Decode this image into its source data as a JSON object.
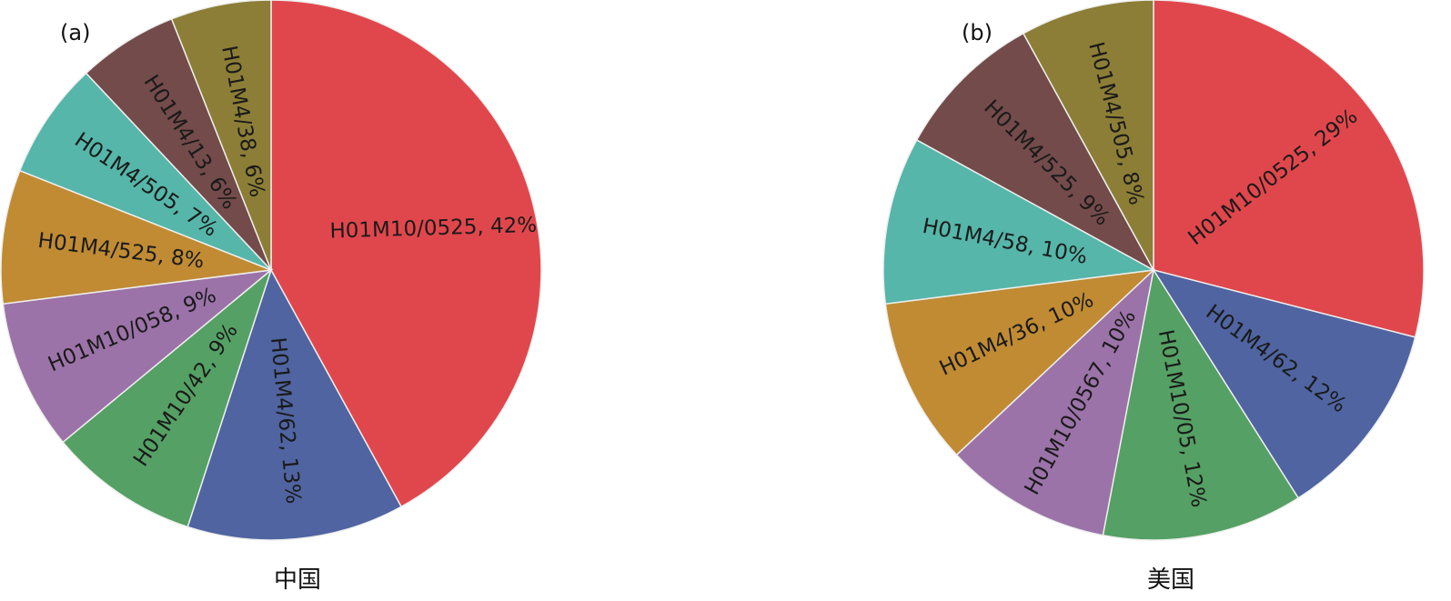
{
  "chart_data": [
    {
      "type": "pie",
      "panel_label": "(a)",
      "caption": "中国",
      "slices": [
        {
          "label": "H01M10/0525, 42%",
          "value": 42,
          "color": "#e0474c"
        },
        {
          "label": "H01M4/62, 13%",
          "value": 13,
          "color": "#4f64a0"
        },
        {
          "label": "H01M10/42, 9%",
          "value": 9,
          "color": "#55a064"
        },
        {
          "label": "H01M10/058, 9%",
          "value": 9,
          "color": "#9b73a8"
        },
        {
          "label": "H01M4/525, 8%",
          "value": 8,
          "color": "#c08b33"
        },
        {
          "label": "H01M4/505, 7%",
          "value": 7,
          "color": "#55b6a9"
        },
        {
          "label": "H01M4/13, 6%",
          "value": 6,
          "color": "#734b4a"
        },
        {
          "label": "H01M4/38, 6%",
          "value": 6,
          "color": "#8c7e36"
        }
      ]
    },
    {
      "type": "pie",
      "panel_label": "(b)",
      "caption": "美国",
      "slices": [
        {
          "label": "H01M10/0525, 29%",
          "value": 29,
          "color": "#e0474c"
        },
        {
          "label": "H01M4/62, 12%",
          "value": 12,
          "color": "#4f64a0"
        },
        {
          "label": "H01M10/05, 12%",
          "value": 12,
          "color": "#55a064"
        },
        {
          "label": "H01M10/0567, 10%",
          "value": 10,
          "color": "#9b73a8"
        },
        {
          "label": "H01M4/36, 10%",
          "value": 10,
          "color": "#c08b33"
        },
        {
          "label": "H01M4/58, 10%",
          "value": 10,
          "color": "#55b6a9"
        },
        {
          "label": "H01M4/525, 9%",
          "value": 9,
          "color": "#734b4a"
        },
        {
          "label": "H01M4/505, 8%",
          "value": 8,
          "color": "#8c7e36"
        }
      ]
    }
  ]
}
